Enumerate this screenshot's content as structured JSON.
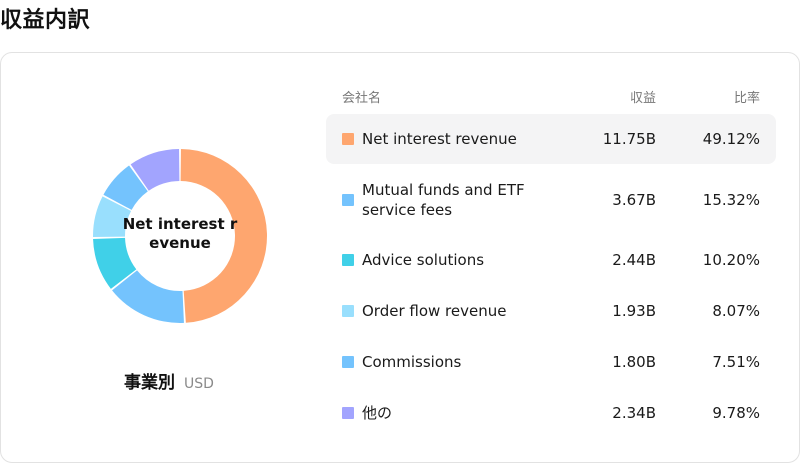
{
  "page": {
    "title": "収益内訳"
  },
  "chart_data": {
    "type": "pie",
    "donut": true,
    "center_label": "Net interest revenue",
    "caption": "事業別",
    "unit": "USD",
    "categories": [
      "Net interest revenue",
      "Mutual funds and ETF service fees",
      "Advice solutions",
      "Order flow revenue",
      "Commissions",
      "他の"
    ],
    "values": [
      11.75,
      3.67,
      2.44,
      1.93,
      1.8,
      2.34
    ],
    "percentages": [
      49.12,
      15.32,
      10.2,
      8.07,
      7.51,
      9.78
    ],
    "colors": [
      "#fea66f",
      "#74c3fd",
      "#40d0e8",
      "#99dffd",
      "#74c3fd",
      "#a2a4fe"
    ]
  },
  "table": {
    "headers": {
      "name": "会社名",
      "revenue": "収益",
      "ratio": "比率"
    },
    "rows": [
      {
        "name": "Net interest revenue",
        "revenue": "11.75B",
        "ratio": "49.12%",
        "color": "#fea66f",
        "highlighted": true
      },
      {
        "name": "Mutual funds and ETF service fees",
        "revenue": "3.67B",
        "ratio": "15.32%",
        "color": "#74c3fd",
        "highlighted": false
      },
      {
        "name": "Advice solutions",
        "revenue": "2.44B",
        "ratio": "10.20%",
        "color": "#40d0e8",
        "highlighted": false
      },
      {
        "name": "Order flow revenue",
        "revenue": "1.93B",
        "ratio": "8.07%",
        "color": "#99dffd",
        "highlighted": false
      },
      {
        "name": "Commissions",
        "revenue": "1.80B",
        "ratio": "7.51%",
        "color": "#74c3fd",
        "highlighted": false
      },
      {
        "name": "他の",
        "revenue": "2.34B",
        "ratio": "9.78%",
        "color": "#a2a4fe",
        "highlighted": false
      }
    ]
  }
}
